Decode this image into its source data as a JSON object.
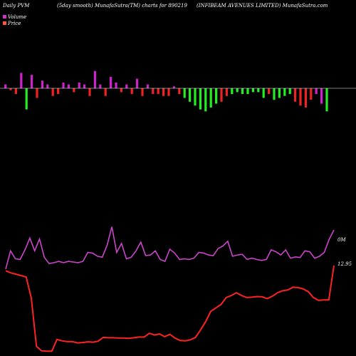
{
  "header": {
    "left": "Daily PVM",
    "center": "(5day smooth) MunafaSutra(TM) charts for 890219",
    "right": "(INFIBEAM AVENUES LIMITED) MunafaSutra.com"
  },
  "legend": {
    "volume_label": "Volume",
    "price_label": "Price",
    "volume_color": "#cc33cc",
    "price_color": "#ff5533"
  },
  "colors": {
    "background": "#000000",
    "volume_up": "#cc22cc",
    "volume_down_red": "#ee2222",
    "volume_down_green": "#22ee22",
    "baseline": "#ffffff",
    "volume_line": "#cc44cc",
    "price_line": "#ff2222"
  },
  "chart_data": {
    "type": "line",
    "bars_signed": [
      2,
      -1,
      -3,
      8,
      -11,
      7,
      -5,
      4,
      2,
      -4,
      -3,
      3,
      2,
      -2,
      3,
      2,
      -4,
      9,
      2,
      -4,
      6,
      3,
      -2,
      2,
      -3,
      5,
      -4,
      2,
      -3,
      -3,
      -4,
      -4,
      1,
      -3,
      -5,
      -7,
      -9,
      -11,
      -12,
      -10,
      -8,
      -7,
      -4,
      -3,
      -2,
      -3,
      -3,
      -2,
      -2,
      -5,
      -3,
      -6,
      -5,
      -4,
      -3,
      -7,
      -9,
      -10,
      -6,
      -3,
      -8,
      -12
    ],
    "bar_colors": [
      "m",
      "r",
      "r",
      "m",
      "g",
      "m",
      "r",
      "m",
      "m",
      "r",
      "r",
      "m",
      "m",
      "r",
      "m",
      "m",
      "r",
      "m",
      "m",
      "r",
      "m",
      "m",
      "r",
      "m",
      "r",
      "m",
      "r",
      "m",
      "r",
      "r",
      "r",
      "r",
      "m",
      "r",
      "g",
      "g",
      "g",
      "g",
      "g",
      "g",
      "g",
      "r",
      "r",
      "g",
      "g",
      "g",
      "g",
      "g",
      "g",
      "g",
      "r",
      "g",
      "g",
      "g",
      "g",
      "r",
      "r",
      "r",
      "r",
      "m",
      "m",
      "g"
    ],
    "volume_series": [
      -0.02,
      0.55,
      0.3,
      0.28,
      0.58,
      0.95,
      0.55,
      0.92,
      0.35,
      0.15,
      0.18,
      0.22,
      0.18,
      0.22,
      0.2,
      0.18,
      0.22,
      0.5,
      0.48,
      0.38,
      0.35,
      0.72,
      1.3,
      0.5,
      0.78,
      0.3,
      0.35,
      0.55,
      0.82,
      0.4,
      0.42,
      0.55,
      0.28,
      0.22,
      0.6,
      0.48,
      0.28,
      0.3,
      0.28,
      0.32,
      0.5,
      0.48,
      0.42,
      0.4,
      0.62,
      0.7,
      0.85,
      0.38,
      0.42,
      0.44,
      0.28,
      0.32,
      0.28,
      0.25,
      0.28,
      0.58,
      0.52,
      0.42,
      0.58,
      0.32,
      0.36,
      0.34,
      0.55,
      0.52,
      0.32,
      0.38,
      0.5,
      0.9,
      1.2
    ],
    "price_series": [
      12.2,
      11.9,
      11.7,
      11.5,
      11.3,
      8.2,
      1.2,
      0.55,
      0.5,
      0.5,
      2.2,
      2.0,
      1.9,
      1.9,
      1.7,
      1.75,
      1.85,
      1.8,
      1.95,
      2.5,
      2.45,
      2.45,
      2.4,
      2.4,
      2.35,
      2.45,
      2.55,
      2.55,
      3.1,
      2.85,
      3.0,
      2.6,
      2.95,
      2.4,
      2.05,
      2.0,
      2.15,
      2.5,
      3.6,
      4.8,
      6.3,
      6.8,
      7.3,
      8.3,
      8.6,
      9.0,
      8.6,
      8.3,
      8.35,
      8.45,
      8.4,
      8.15,
      8.5,
      9.0,
      9.3,
      9.4,
      9.8,
      9.75,
      9.55,
      9.15,
      8.3,
      7.9,
      7.95,
      7.95,
      12.95
    ],
    "volume_end_label": "0M",
    "price_end_label": "12.95",
    "grid": false
  }
}
